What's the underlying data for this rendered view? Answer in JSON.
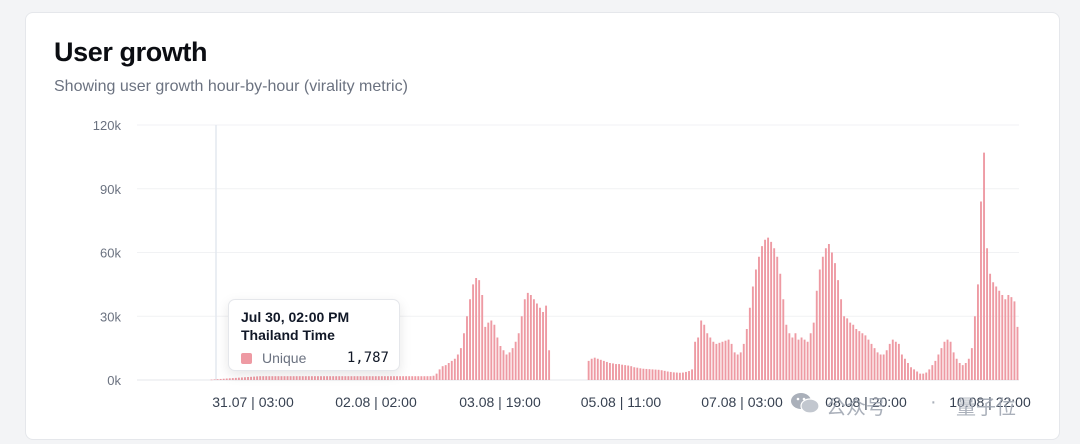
{
  "card": {
    "title": "User growth",
    "subtitle": "Showing user growth hour-by-hour (virality metric)"
  },
  "tooltip": {
    "datetime": "Jul 30, 02:00 PM",
    "timezone": "Thailand Time",
    "series_label": "Unique",
    "value": "1,787",
    "color": "#ee9aa3"
  },
  "watermark": {
    "text1": "公众号",
    "separator": "·",
    "text2": "量子位"
  },
  "chart_data": {
    "type": "bar",
    "y_ticks": [
      "120k",
      "90k",
      "60k",
      "30k",
      "0k"
    ],
    "x_tick_labels": [
      "31.07 | 03:00",
      "02.08 | 02:00",
      "03.08 | 19:00",
      "05.08 | 11:00",
      "07.08 | 03:00",
      "08.08 | 20:00",
      "10.08 | 22:00"
    ],
    "ylim": [
      0,
      120000
    ],
    "grid": true,
    "bar_color": "#ee9aa3",
    "series": [
      {
        "name": "Unique",
        "values": [
          0,
          0,
          0,
          0,
          0,
          0,
          0,
          0,
          0,
          0,
          0,
          0,
          0,
          0,
          0,
          0,
          0,
          0,
          0,
          0,
          0,
          0,
          0,
          0,
          200,
          300,
          400,
          500,
          600,
          700,
          800,
          900,
          1000,
          1100,
          1200,
          1300,
          1400,
          1500,
          1600,
          1700,
          1787,
          1787,
          1787,
          1787,
          1787,
          1787,
          1787,
          1787,
          1787,
          1787,
          1787,
          1787,
          1787,
          1787,
          1787,
          1787,
          1787,
          1787,
          1787,
          1787,
          1787,
          1787,
          1787,
          1787,
          1787,
          1787,
          1787,
          1787,
          1787,
          1787,
          1787,
          1787,
          1787,
          1787,
          1787,
          1787,
          1787,
          1787,
          1787,
          1787,
          1787,
          1787,
          1787,
          1787,
          1787,
          1787,
          1787,
          1787,
          1787,
          1787,
          1787,
          1787,
          1787,
          1787,
          1787,
          1787,
          1800,
          2000,
          3000,
          5000,
          6500,
          7000,
          8000,
          9000,
          10000,
          12000,
          15000,
          22000,
          30000,
          38000,
          45000,
          48000,
          47000,
          40000,
          25000,
          27000,
          28000,
          26000,
          20000,
          16000,
          14000,
          12000,
          13000,
          15000,
          18000,
          22000,
          30000,
          38000,
          41000,
          40000,
          38000,
          36000,
          34000,
          32000,
          35000,
          14000,
          0,
          0,
          0,
          0,
          0,
          0,
          0,
          0,
          0,
          0,
          0,
          0,
          9000,
          10000,
          10500,
          10000,
          9500,
          9000,
          8500,
          8000,
          7800,
          7500,
          7500,
          7200,
          7000,
          6800,
          6500,
          6000,
          5800,
          5500,
          5300,
          5200,
          5100,
          5000,
          4900,
          4800,
          4600,
          4300,
          4000,
          3800,
          3600,
          3500,
          3400,
          3500,
          3800,
          4200,
          5000,
          18000,
          20000,
          28000,
          26000,
          22000,
          20000,
          18000,
          17000,
          17500,
          18000,
          18500,
          19000,
          17000,
          13000,
          12000,
          13000,
          17000,
          24000,
          34000,
          44000,
          52000,
          58000,
          63000,
          66000,
          67000,
          65000,
          62000,
          58000,
          50000,
          38000,
          26000,
          22000,
          20000,
          22000,
          19000,
          20000,
          19000,
          18000,
          22000,
          27000,
          42000,
          52000,
          58000,
          62000,
          64000,
          60000,
          55000,
          47000,
          38000,
          30000,
          29000,
          27000,
          26000,
          24000,
          23000,
          22000,
          21000,
          19000,
          17000,
          15000,
          13000,
          12000,
          12000,
          14000,
          17000,
          19000,
          18000,
          17000,
          12000,
          10000,
          8000,
          6000,
          5000,
          4000,
          3000,
          3000,
          3500,
          5000,
          7000,
          9000,
          12000,
          15000,
          18000,
          19000,
          18000,
          13000,
          10000,
          8000,
          7000,
          8000,
          10000,
          15000,
          30000,
          45000,
          84000,
          107000,
          62000,
          50000,
          46000,
          44000,
          42000,
          40000,
          38000,
          40000,
          39000,
          37000,
          25000
        ]
      }
    ]
  }
}
